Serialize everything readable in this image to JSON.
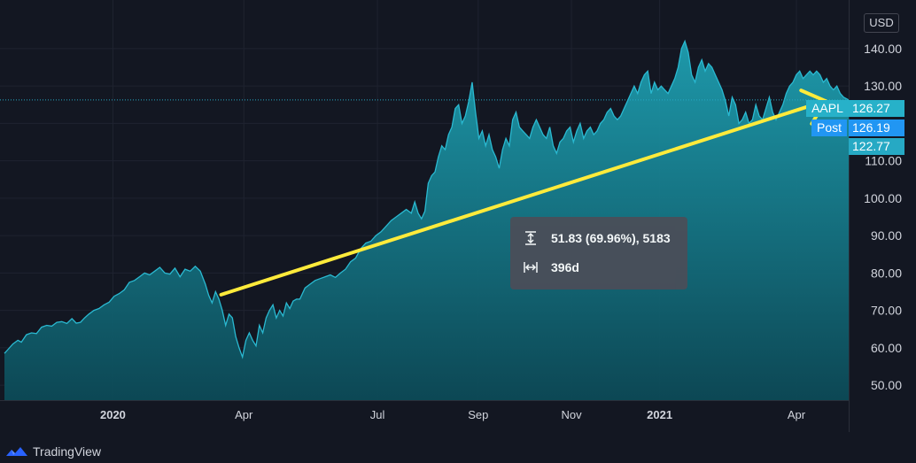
{
  "currency": "USD",
  "branding": {
    "name": "TradingView"
  },
  "price_tags": {
    "symbol": "AAPL",
    "symbol_price": "126.27",
    "post_label": "Post",
    "post_price": "126.19",
    "other_price": "122.77"
  },
  "measure_tooltip": {
    "price_change": "51.83 (69.96%), 5183",
    "duration": "396d"
  },
  "colors": {
    "background": "#131722",
    "area_line": "#2ab9d1",
    "area_fill_top": "#1a8f9e",
    "area_fill_bottom": "#0e4f5c",
    "trend_arrow": "#ffeb3b",
    "aapl_tag": "#27b1c9",
    "post_tag": "#2196f3",
    "pill_tag": "#26a9c4"
  },
  "chart_data": {
    "type": "area",
    "series_name": "AAPL",
    "ylim": [
      46,
      153
    ],
    "y_ticks": [
      "140.00",
      "130.00",
      "120.00",
      "110.00",
      "100.00",
      "90.00",
      "80.00",
      "70.00",
      "60.00",
      "50.00"
    ],
    "y_tick_values": [
      140,
      130,
      120,
      110,
      100,
      90,
      80,
      70,
      60,
      50
    ],
    "x_ticks": [
      {
        "label": "2020",
        "bold": true,
        "t": 0.1285
      },
      {
        "label": "Apr",
        "bold": false,
        "t": 0.2836
      },
      {
        "label": "Jul",
        "bold": false,
        "t": 0.4418
      },
      {
        "label": "Sep",
        "bold": false,
        "t": 0.5612
      },
      {
        "label": "Nov",
        "bold": false,
        "t": 0.6716
      },
      {
        "label": "2021",
        "bold": true,
        "t": 0.7761
      },
      {
        "label": "Apr",
        "bold": false,
        "t": 0.9381
      }
    ],
    "points": [
      [
        0,
        58.5
      ],
      [
        0.004,
        59.5
      ],
      [
        0.01,
        61
      ],
      [
        0.016,
        62
      ],
      [
        0.02,
        61.5
      ],
      [
        0.026,
        63.5
      ],
      [
        0.032,
        64
      ],
      [
        0.038,
        63.8
      ],
      [
        0.044,
        65.5
      ],
      [
        0.05,
        66
      ],
      [
        0.056,
        65.8
      ],
      [
        0.062,
        66.8
      ],
      [
        0.068,
        67
      ],
      [
        0.074,
        66.5
      ],
      [
        0.08,
        67.8
      ],
      [
        0.085,
        66.6
      ],
      [
        0.09,
        66.8
      ],
      [
        0.095,
        68
      ],
      [
        0.1,
        69
      ],
      [
        0.106,
        70
      ],
      [
        0.112,
        70.5
      ],
      [
        0.118,
        71.5
      ],
      [
        0.124,
        72.2
      ],
      [
        0.13,
        73.8
      ],
      [
        0.136,
        74.5
      ],
      [
        0.142,
        75.5
      ],
      [
        0.148,
        77.5
      ],
      [
        0.154,
        78
      ],
      [
        0.16,
        79
      ],
      [
        0.166,
        80
      ],
      [
        0.172,
        79.5
      ],
      [
        0.178,
        80.5
      ],
      [
        0.184,
        81.5
      ],
      [
        0.19,
        80
      ],
      [
        0.196,
        79.7
      ],
      [
        0.202,
        81.3
      ],
      [
        0.208,
        79
      ],
      [
        0.214,
        81
      ],
      [
        0.22,
        80.5
      ],
      [
        0.226,
        81.8
      ],
      [
        0.232,
        80.5
      ],
      [
        0.238,
        77
      ],
      [
        0.242,
        74
      ],
      [
        0.246,
        72
      ],
      [
        0.25,
        75
      ],
      [
        0.254,
        73
      ],
      [
        0.258,
        70
      ],
      [
        0.262,
        66
      ],
      [
        0.266,
        69
      ],
      [
        0.27,
        68
      ],
      [
        0.274,
        63
      ],
      [
        0.278,
        60
      ],
      [
        0.282,
        57.5
      ],
      [
        0.286,
        62
      ],
      [
        0.29,
        64
      ],
      [
        0.294,
        62
      ],
      [
        0.298,
        60.5
      ],
      [
        0.302,
        66
      ],
      [
        0.306,
        64
      ],
      [
        0.31,
        68
      ],
      [
        0.314,
        70
      ],
      [
        0.318,
        71.5
      ],
      [
        0.322,
        68
      ],
      [
        0.326,
        70
      ],
      [
        0.33,
        68.5
      ],
      [
        0.334,
        72
      ],
      [
        0.338,
        70.5
      ],
      [
        0.342,
        72.5
      ],
      [
        0.346,
        73
      ],
      [
        0.35,
        73
      ],
      [
        0.356,
        76
      ],
      [
        0.362,
        77
      ],
      [
        0.368,
        78
      ],
      [
        0.374,
        78.5
      ],
      [
        0.38,
        79
      ],
      [
        0.386,
        79.5
      ],
      [
        0.392,
        78.8
      ],
      [
        0.398,
        80
      ],
      [
        0.404,
        81
      ],
      [
        0.41,
        83
      ],
      [
        0.416,
        84
      ],
      [
        0.422,
        86.5
      ],
      [
        0.428,
        88
      ],
      [
        0.434,
        88.5
      ],
      [
        0.44,
        90
      ],
      [
        0.446,
        91
      ],
      [
        0.452,
        92.5
      ],
      [
        0.458,
        94
      ],
      [
        0.464,
        95
      ],
      [
        0.47,
        96
      ],
      [
        0.476,
        97
      ],
      [
        0.482,
        96
      ],
      [
        0.486,
        99
      ],
      [
        0.49,
        96
      ],
      [
        0.494,
        94.5
      ],
      [
        0.498,
        96.5
      ],
      [
        0.502,
        104
      ],
      [
        0.506,
        106
      ],
      [
        0.51,
        107
      ],
      [
        0.514,
        111
      ],
      [
        0.518,
        114
      ],
      [
        0.522,
        113
      ],
      [
        0.526,
        117
      ],
      [
        0.53,
        119
      ],
      [
        0.534,
        124
      ],
      [
        0.538,
        125
      ],
      [
        0.542,
        120
      ],
      [
        0.546,
        122
      ],
      [
        0.55,
        126
      ],
      [
        0.554,
        131
      ],
      [
        0.558,
        123
      ],
      [
        0.562,
        116
      ],
      [
        0.566,
        118
      ],
      [
        0.57,
        114
      ],
      [
        0.574,
        117
      ],
      [
        0.578,
        113
      ],
      [
        0.582,
        111
      ],
      [
        0.586,
        108
      ],
      [
        0.59,
        113
      ],
      [
        0.594,
        116
      ],
      [
        0.598,
        114
      ],
      [
        0.602,
        121
      ],
      [
        0.606,
        123
      ],
      [
        0.61,
        119
      ],
      [
        0.614,
        118
      ],
      [
        0.618,
        117
      ],
      [
        0.622,
        116
      ],
      [
        0.626,
        119
      ],
      [
        0.63,
        121
      ],
      [
        0.634,
        119
      ],
      [
        0.638,
        117
      ],
      [
        0.642,
        116
      ],
      [
        0.646,
        119
      ],
      [
        0.65,
        114
      ],
      [
        0.654,
        112
      ],
      [
        0.658,
        115
      ],
      [
        0.662,
        116
      ],
      [
        0.666,
        118
      ],
      [
        0.67,
        119
      ],
      [
        0.674,
        115
      ],
      [
        0.678,
        118
      ],
      [
        0.682,
        120
      ],
      [
        0.686,
        116
      ],
      [
        0.69,
        118
      ],
      [
        0.694,
        119
      ],
      [
        0.698,
        117
      ],
      [
        0.702,
        118
      ],
      [
        0.706,
        120
      ],
      [
        0.71,
        121
      ],
      [
        0.714,
        123
      ],
      [
        0.718,
        124
      ],
      [
        0.722,
        122
      ],
      [
        0.726,
        121
      ],
      [
        0.73,
        122
      ],
      [
        0.734,
        124
      ],
      [
        0.738,
        126
      ],
      [
        0.742,
        128
      ],
      [
        0.746,
        130
      ],
      [
        0.75,
        128
      ],
      [
        0.754,
        131
      ],
      [
        0.758,
        133
      ],
      [
        0.762,
        134
      ],
      [
        0.766,
        128
      ],
      [
        0.77,
        131
      ],
      [
        0.774,
        129
      ],
      [
        0.778,
        130
      ],
      [
        0.782,
        129
      ],
      [
        0.786,
        128
      ],
      [
        0.79,
        130
      ],
      [
        0.794,
        132
      ],
      [
        0.798,
        135
      ],
      [
        0.802,
        140
      ],
      [
        0.806,
        142
      ],
      [
        0.81,
        139
      ],
      [
        0.814,
        133
      ],
      [
        0.818,
        131
      ],
      [
        0.822,
        135
      ],
      [
        0.826,
        137
      ],
      [
        0.83,
        134
      ],
      [
        0.834,
        136
      ],
      [
        0.838,
        135
      ],
      [
        0.842,
        133
      ],
      [
        0.846,
        131
      ],
      [
        0.85,
        129
      ],
      [
        0.854,
        126
      ],
      [
        0.858,
        122
      ],
      [
        0.862,
        127
      ],
      [
        0.866,
        125
      ],
      [
        0.87,
        120
      ],
      [
        0.874,
        121
      ],
      [
        0.878,
        123
      ],
      [
        0.882,
        120
      ],
      [
        0.886,
        121
      ],
      [
        0.89,
        125
      ],
      [
        0.894,
        122
      ],
      [
        0.898,
        121
      ],
      [
        0.902,
        124
      ],
      [
        0.906,
        127
      ],
      [
        0.91,
        123
      ],
      [
        0.914,
        121
      ],
      [
        0.918,
        123
      ],
      [
        0.922,
        125
      ],
      [
        0.926,
        128
      ],
      [
        0.93,
        130
      ],
      [
        0.934,
        131
      ],
      [
        0.938,
        133
      ],
      [
        0.942,
        134
      ],
      [
        0.946,
        132
      ],
      [
        0.95,
        133
      ],
      [
        0.954,
        134
      ],
      [
        0.958,
        133
      ],
      [
        0.962,
        134
      ],
      [
        0.966,
        133
      ],
      [
        0.97,
        131
      ],
      [
        0.974,
        132
      ],
      [
        0.978,
        130
      ],
      [
        0.982,
        129
      ],
      [
        0.986,
        130
      ],
      [
        0.99,
        128
      ],
      [
        0.994,
        127
      ],
      [
        1.0,
        126.3
      ]
    ],
    "current_price": 126.27,
    "trend_line": {
      "start": [
        0.2566,
        74.2
      ],
      "end": [
        0.9725,
        126.0
      ]
    }
  }
}
